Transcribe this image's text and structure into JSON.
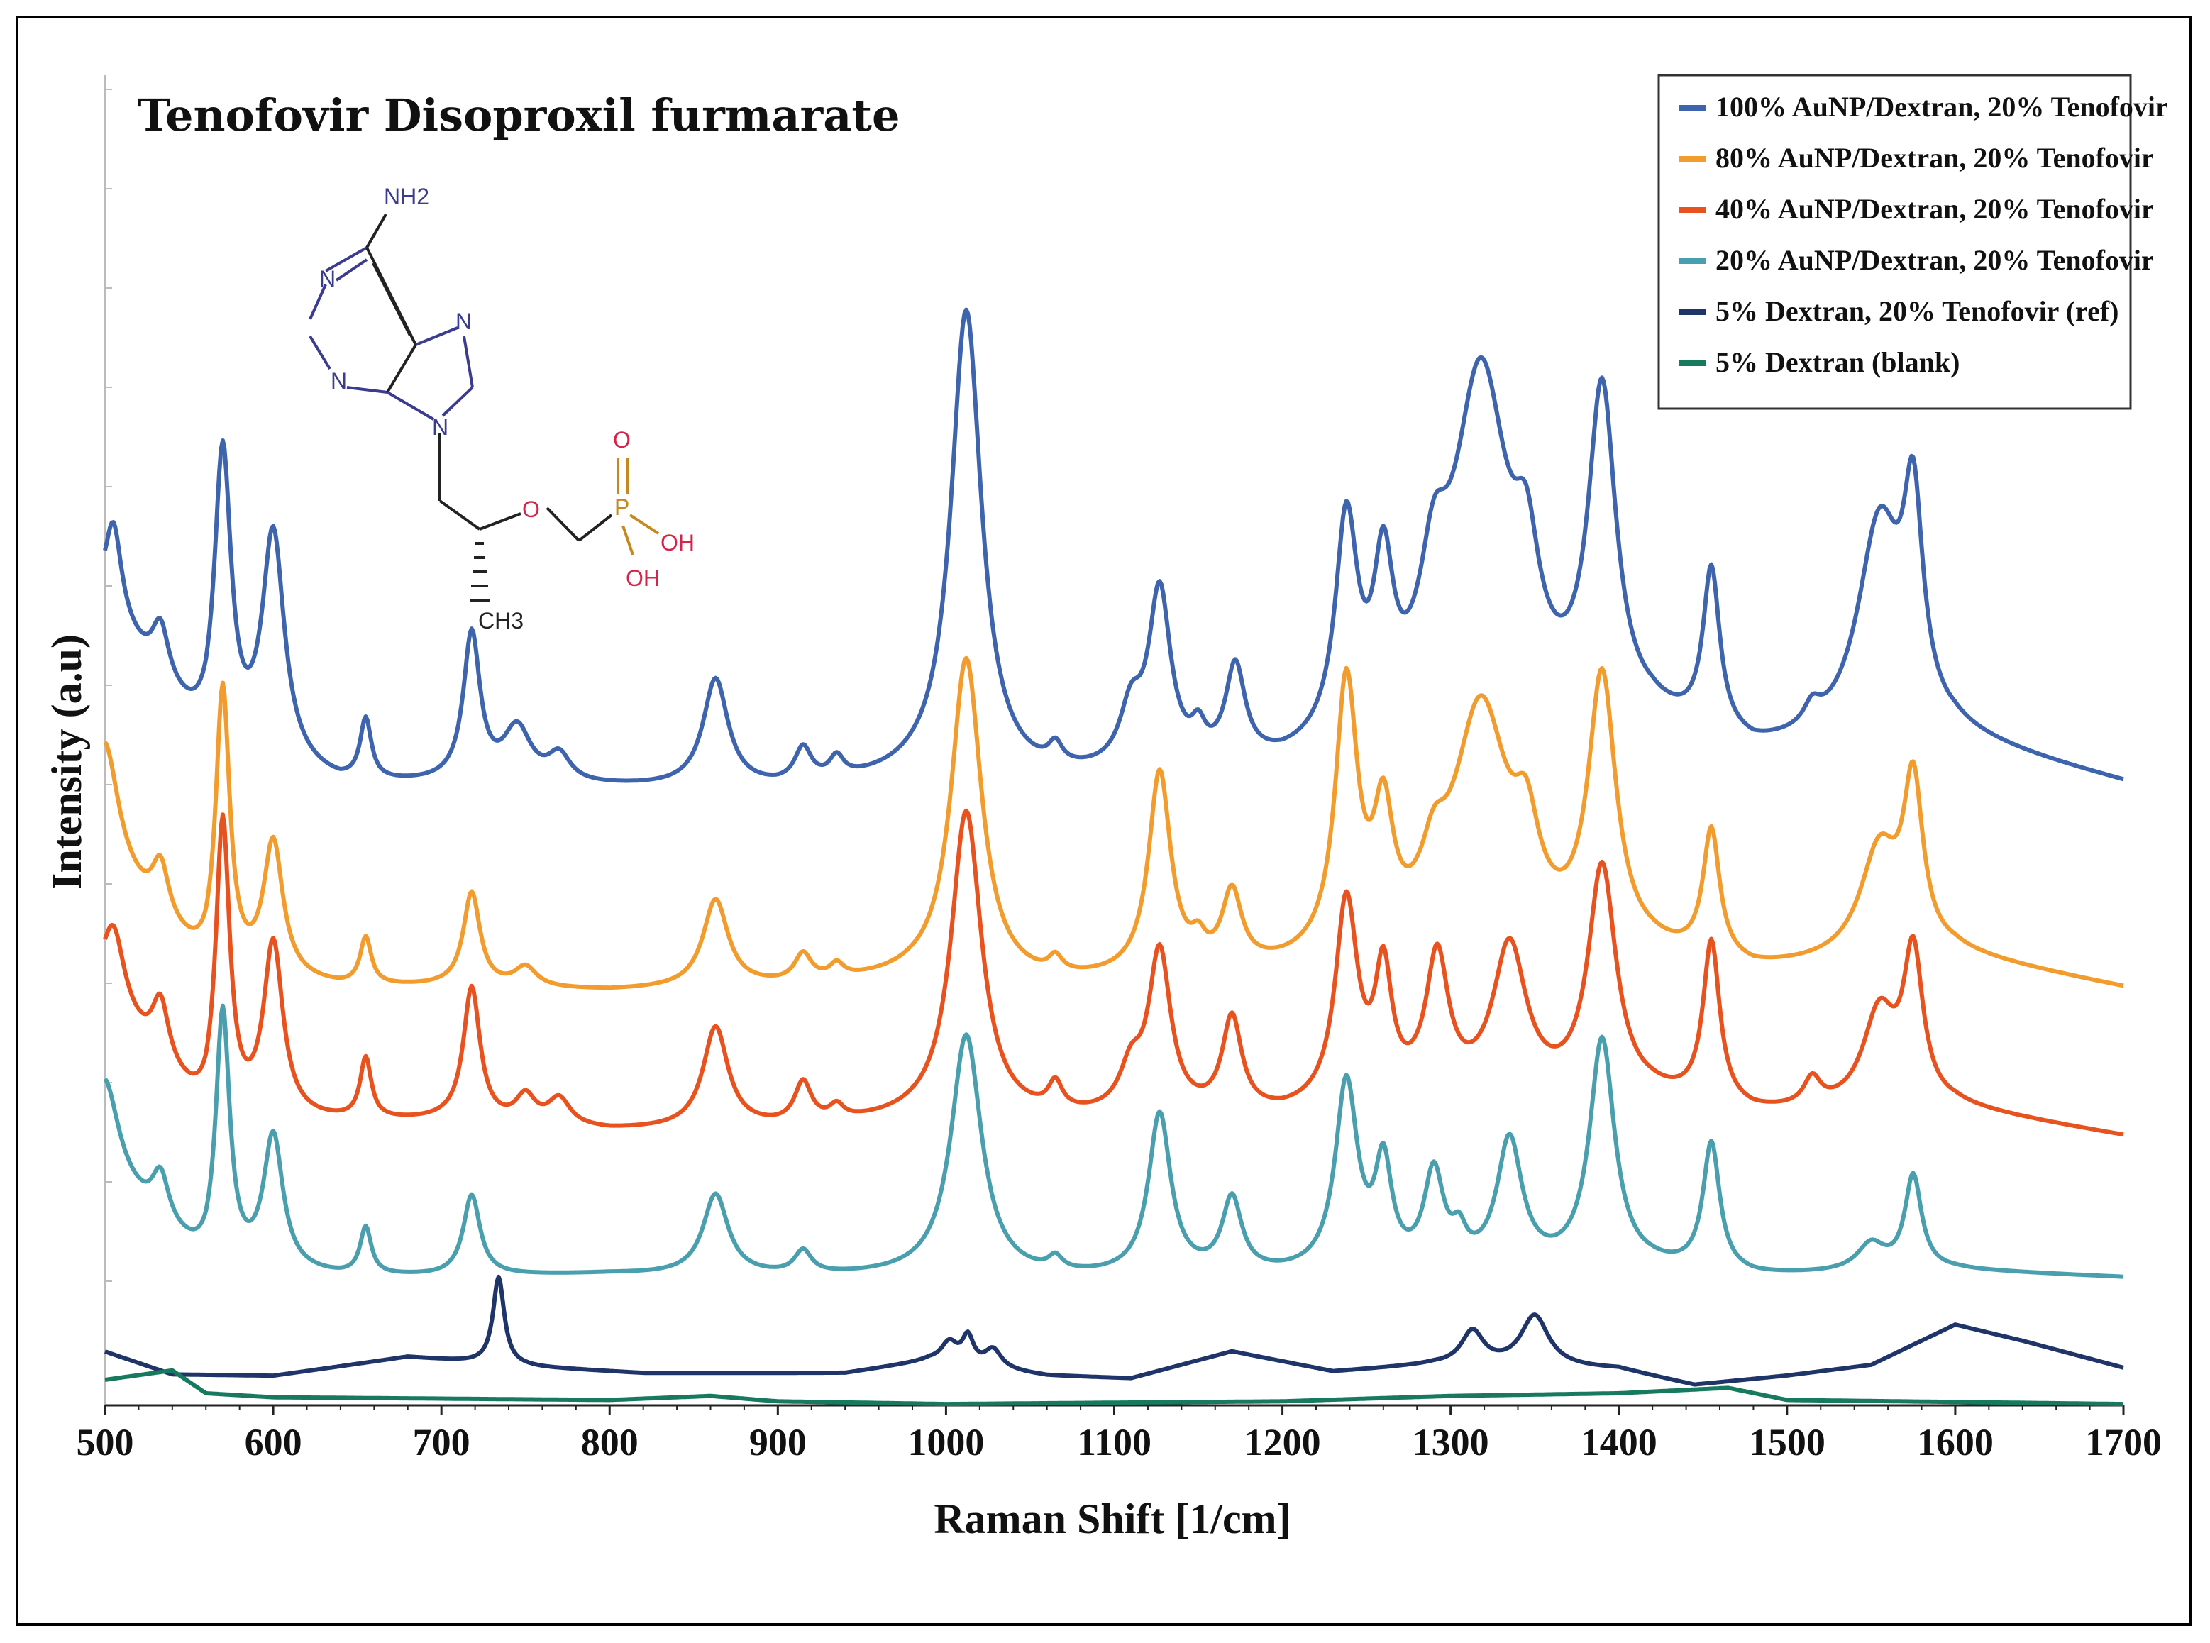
{
  "chart_data": {
    "type": "line",
    "title": "Tenofovir  Disoproxil  furmarate",
    "xlabel": "Raman Shift [1/cm]",
    "ylabel": "Intensity (a.u)",
    "xlim": [
      500,
      1700
    ],
    "ylim": [
      0,
      100
    ],
    "x_ticks": [
      "500",
      "600",
      "700",
      "800",
      "900",
      "1000",
      "1100",
      "1200",
      "1300",
      "1400",
      "1500",
      "1600",
      "1700"
    ],
    "legend_position": "top-right",
    "molecule": {
      "name": "Tenofovir",
      "labels": {
        "nh2": "NH2",
        "n1": "N",
        "n3": "N",
        "n7": "N",
        "n9": "N",
        "o_ether": "O",
        "o_double": "O",
        "p": "P",
        "oh1": "OH",
        "oh2": "OH",
        "ch3": "CH3"
      }
    },
    "series": [
      {
        "name": "100% AuNP/Dextran, 20% Tenofovir",
        "color": "#3E64AE",
        "baseline": [
          [
            500,
            59
          ],
          [
            560,
            48.7
          ],
          [
            640,
            46
          ],
          [
            700,
            46
          ],
          [
            800,
            45.8
          ],
          [
            900,
            45.6
          ],
          [
            980,
            46.2
          ],
          [
            1060,
            46
          ],
          [
            1200,
            47
          ],
          [
            1280,
            49
          ],
          [
            1420,
            50
          ],
          [
            1480,
            48
          ],
          [
            1600,
            49.2
          ],
          [
            1700,
            46.2
          ]
        ],
        "peaks": [
          [
            505,
            7,
            6
          ],
          [
            533,
            4,
            6
          ],
          [
            570,
            22,
            6
          ],
          [
            600,
            17,
            8
          ],
          [
            655,
            4.5,
            4
          ],
          [
            718,
            11,
            6
          ],
          [
            745,
            4,
            10
          ],
          [
            770,
            2,
            8
          ],
          [
            863,
            8,
            9
          ],
          [
            915,
            2.5,
            6
          ],
          [
            935,
            1.5,
            5
          ],
          [
            1012,
            35,
            11
          ],
          [
            1065,
            1.5,
            5
          ],
          [
            1110,
            4,
            8
          ],
          [
            1127,
            13,
            8
          ],
          [
            1150,
            2,
            5
          ],
          [
            1172,
            7,
            7
          ],
          [
            1238,
            16,
            8
          ],
          [
            1260,
            11,
            7
          ],
          [
            1290,
            8,
            10
          ],
          [
            1318,
            26,
            20
          ],
          [
            1345,
            8,
            9
          ],
          [
            1390,
            24,
            10
          ],
          [
            1455,
            12,
            6
          ],
          [
            1515,
            1.5,
            6
          ],
          [
            1555,
            16,
            16
          ],
          [
            1575,
            15,
            7
          ]
        ]
      },
      {
        "name": "80% AuNP/Dextran, 20% Tenofovir",
        "color": "#F39C2E",
        "baseline": [
          [
            500,
            40
          ],
          [
            560,
            32
          ],
          [
            640,
            31
          ],
          [
            700,
            31
          ],
          [
            800,
            30.7
          ],
          [
            900,
            31
          ],
          [
            980,
            31.5
          ],
          [
            1060,
            31
          ],
          [
            1200,
            32
          ],
          [
            1280,
            33
          ],
          [
            1420,
            33
          ],
          [
            1480,
            32
          ],
          [
            1600,
            33.3
          ],
          [
            1700,
            31
          ]
        ],
        "peaks": [
          [
            500,
            9,
            10
          ],
          [
            533,
            4,
            6
          ],
          [
            570,
            21,
            5
          ],
          [
            600,
            10,
            7
          ],
          [
            655,
            3.5,
            4
          ],
          [
            718,
            7,
            6
          ],
          [
            750,
            1.5,
            8
          ],
          [
            863,
            6.5,
            9
          ],
          [
            915,
            2,
            6
          ],
          [
            935,
            1,
            5
          ],
          [
            1012,
            24,
            11
          ],
          [
            1065,
            1.2,
            5
          ],
          [
            1127,
            15,
            8
          ],
          [
            1150,
            1.5,
            5
          ],
          [
            1170,
            5.5,
            7
          ],
          [
            1238,
            20,
            8
          ],
          [
            1260,
            9,
            7
          ],
          [
            1290,
            4,
            9
          ],
          [
            1318,
            18,
            20
          ],
          [
            1345,
            6,
            9
          ],
          [
            1390,
            20,
            10
          ],
          [
            1455,
            9.5,
            6
          ],
          [
            1555,
            8,
            14
          ],
          [
            1575,
            12,
            7
          ]
        ]
      },
      {
        "name": "40% AuNP/Dextran, 20% Tenofovir",
        "color": "#E8521E",
        "baseline": [
          [
            500,
            30
          ],
          [
            560,
            21
          ],
          [
            640,
            21
          ],
          [
            700,
            21
          ],
          [
            800,
            20.3
          ],
          [
            900,
            20.5
          ],
          [
            980,
            21
          ],
          [
            1060,
            21
          ],
          [
            1200,
            21.3
          ],
          [
            1280,
            22.6
          ],
          [
            1420,
            22.6
          ],
          [
            1480,
            21.5
          ],
          [
            1600,
            22
          ],
          [
            1700,
            20
          ]
        ],
        "peaks": [
          [
            505,
            6,
            8
          ],
          [
            533,
            4.5,
            6
          ],
          [
            570,
            22,
            5
          ],
          [
            600,
            13,
            7
          ],
          [
            655,
            4.5,
            4
          ],
          [
            718,
            10,
            6
          ],
          [
            750,
            2,
            7
          ],
          [
            770,
            2,
            8
          ],
          [
            863,
            7.5,
            9
          ],
          [
            915,
            3,
            6
          ],
          [
            935,
            1,
            5
          ],
          [
            1012,
            23,
            11
          ],
          [
            1065,
            2,
            5
          ],
          [
            1110,
            3,
            8
          ],
          [
            1127,
            12,
            8
          ],
          [
            1170,
            7,
            7
          ],
          [
            1238,
            15,
            8
          ],
          [
            1260,
            9,
            6
          ],
          [
            1292,
            10,
            8
          ],
          [
            1335,
            11,
            12
          ],
          [
            1390,
            17,
            10
          ],
          [
            1455,
            12,
            6
          ],
          [
            1515,
            2,
            6
          ],
          [
            1555,
            7,
            12
          ],
          [
            1575,
            11,
            7
          ]
        ]
      },
      {
        "name": "20% AuNP/Dextran, 20% Tenofovir",
        "color": "#4A9FAF",
        "baseline": [
          [
            500,
            17
          ],
          [
            560,
            10
          ],
          [
            640,
            9.5
          ],
          [
            700,
            9.5
          ],
          [
            800,
            9.7
          ],
          [
            900,
            9.5
          ],
          [
            980,
            9.5
          ],
          [
            1060,
            9.3
          ],
          [
            1200,
            9.5
          ],
          [
            1280,
            9.7
          ],
          [
            1420,
            10
          ],
          [
            1480,
            9.5
          ],
          [
            1600,
            10
          ],
          [
            1700,
            9.5
          ]
        ],
        "peaks": [
          [
            500,
            7,
            10
          ],
          [
            533,
            3.5,
            6
          ],
          [
            570,
            19,
            5
          ],
          [
            600,
            10,
            7
          ],
          [
            655,
            3.5,
            4
          ],
          [
            718,
            6,
            6
          ],
          [
            863,
            6,
            9
          ],
          [
            915,
            1.7,
            6
          ],
          [
            1012,
            18,
            11
          ],
          [
            1065,
            1,
            5
          ],
          [
            1127,
            12,
            8
          ],
          [
            1170,
            5.5,
            7
          ],
          [
            1238,
            14,
            8
          ],
          [
            1260,
            7.5,
            6
          ],
          [
            1290,
            7,
            7
          ],
          [
            1305,
            2,
            5
          ],
          [
            1335,
            9.5,
            9
          ],
          [
            1390,
            17,
            9
          ],
          [
            1455,
            9.5,
            6
          ],
          [
            1550,
            2,
            10
          ],
          [
            1575,
            7,
            6
          ]
        ]
      },
      {
        "name": "5% Dextran, 20% Tenofovir (ref)",
        "color": "#1F3468",
        "baseline": [
          [
            500,
            4
          ],
          [
            540,
            2.3
          ],
          [
            600,
            2.2
          ],
          [
            680,
            3.6
          ],
          [
            760,
            2.8
          ],
          [
            820,
            2.4
          ],
          [
            940,
            2.4
          ],
          [
            990,
            3.3
          ],
          [
            1060,
            2.2
          ],
          [
            1110,
            2
          ],
          [
            1170,
            4
          ],
          [
            1230,
            2.5
          ],
          [
            1290,
            3
          ],
          [
            1400,
            2.7
          ],
          [
            1445,
            1.5
          ],
          [
            1500,
            2.2
          ],
          [
            1550,
            3
          ],
          [
            1600,
            6
          ],
          [
            1640,
            4.8
          ],
          [
            1700,
            2.8
          ]
        ],
        "peaks": [
          [
            734,
            6.5,
            4
          ],
          [
            1002,
            1.5,
            6
          ],
          [
            1013,
            2,
            4
          ],
          [
            1028,
            1.4,
            6
          ],
          [
            1313,
            2.5,
            8
          ],
          [
            1350,
            3.8,
            10
          ]
        ]
      },
      {
        "name": "5% Dextran (blank)",
        "color": "#177A5E",
        "baseline": [
          [
            500,
            1.9
          ],
          [
            540,
            2.6
          ],
          [
            560,
            0.9
          ],
          [
            600,
            0.6
          ],
          [
            800,
            0.4
          ],
          [
            860,
            0.7
          ],
          [
            900,
            0.3
          ],
          [
            1000,
            0.1
          ],
          [
            1200,
            0.3
          ],
          [
            1300,
            0.7
          ],
          [
            1400,
            0.9
          ],
          [
            1465,
            1.3
          ],
          [
            1500,
            0.4
          ],
          [
            1700,
            0.1
          ]
        ],
        "peaks": []
      }
    ]
  }
}
